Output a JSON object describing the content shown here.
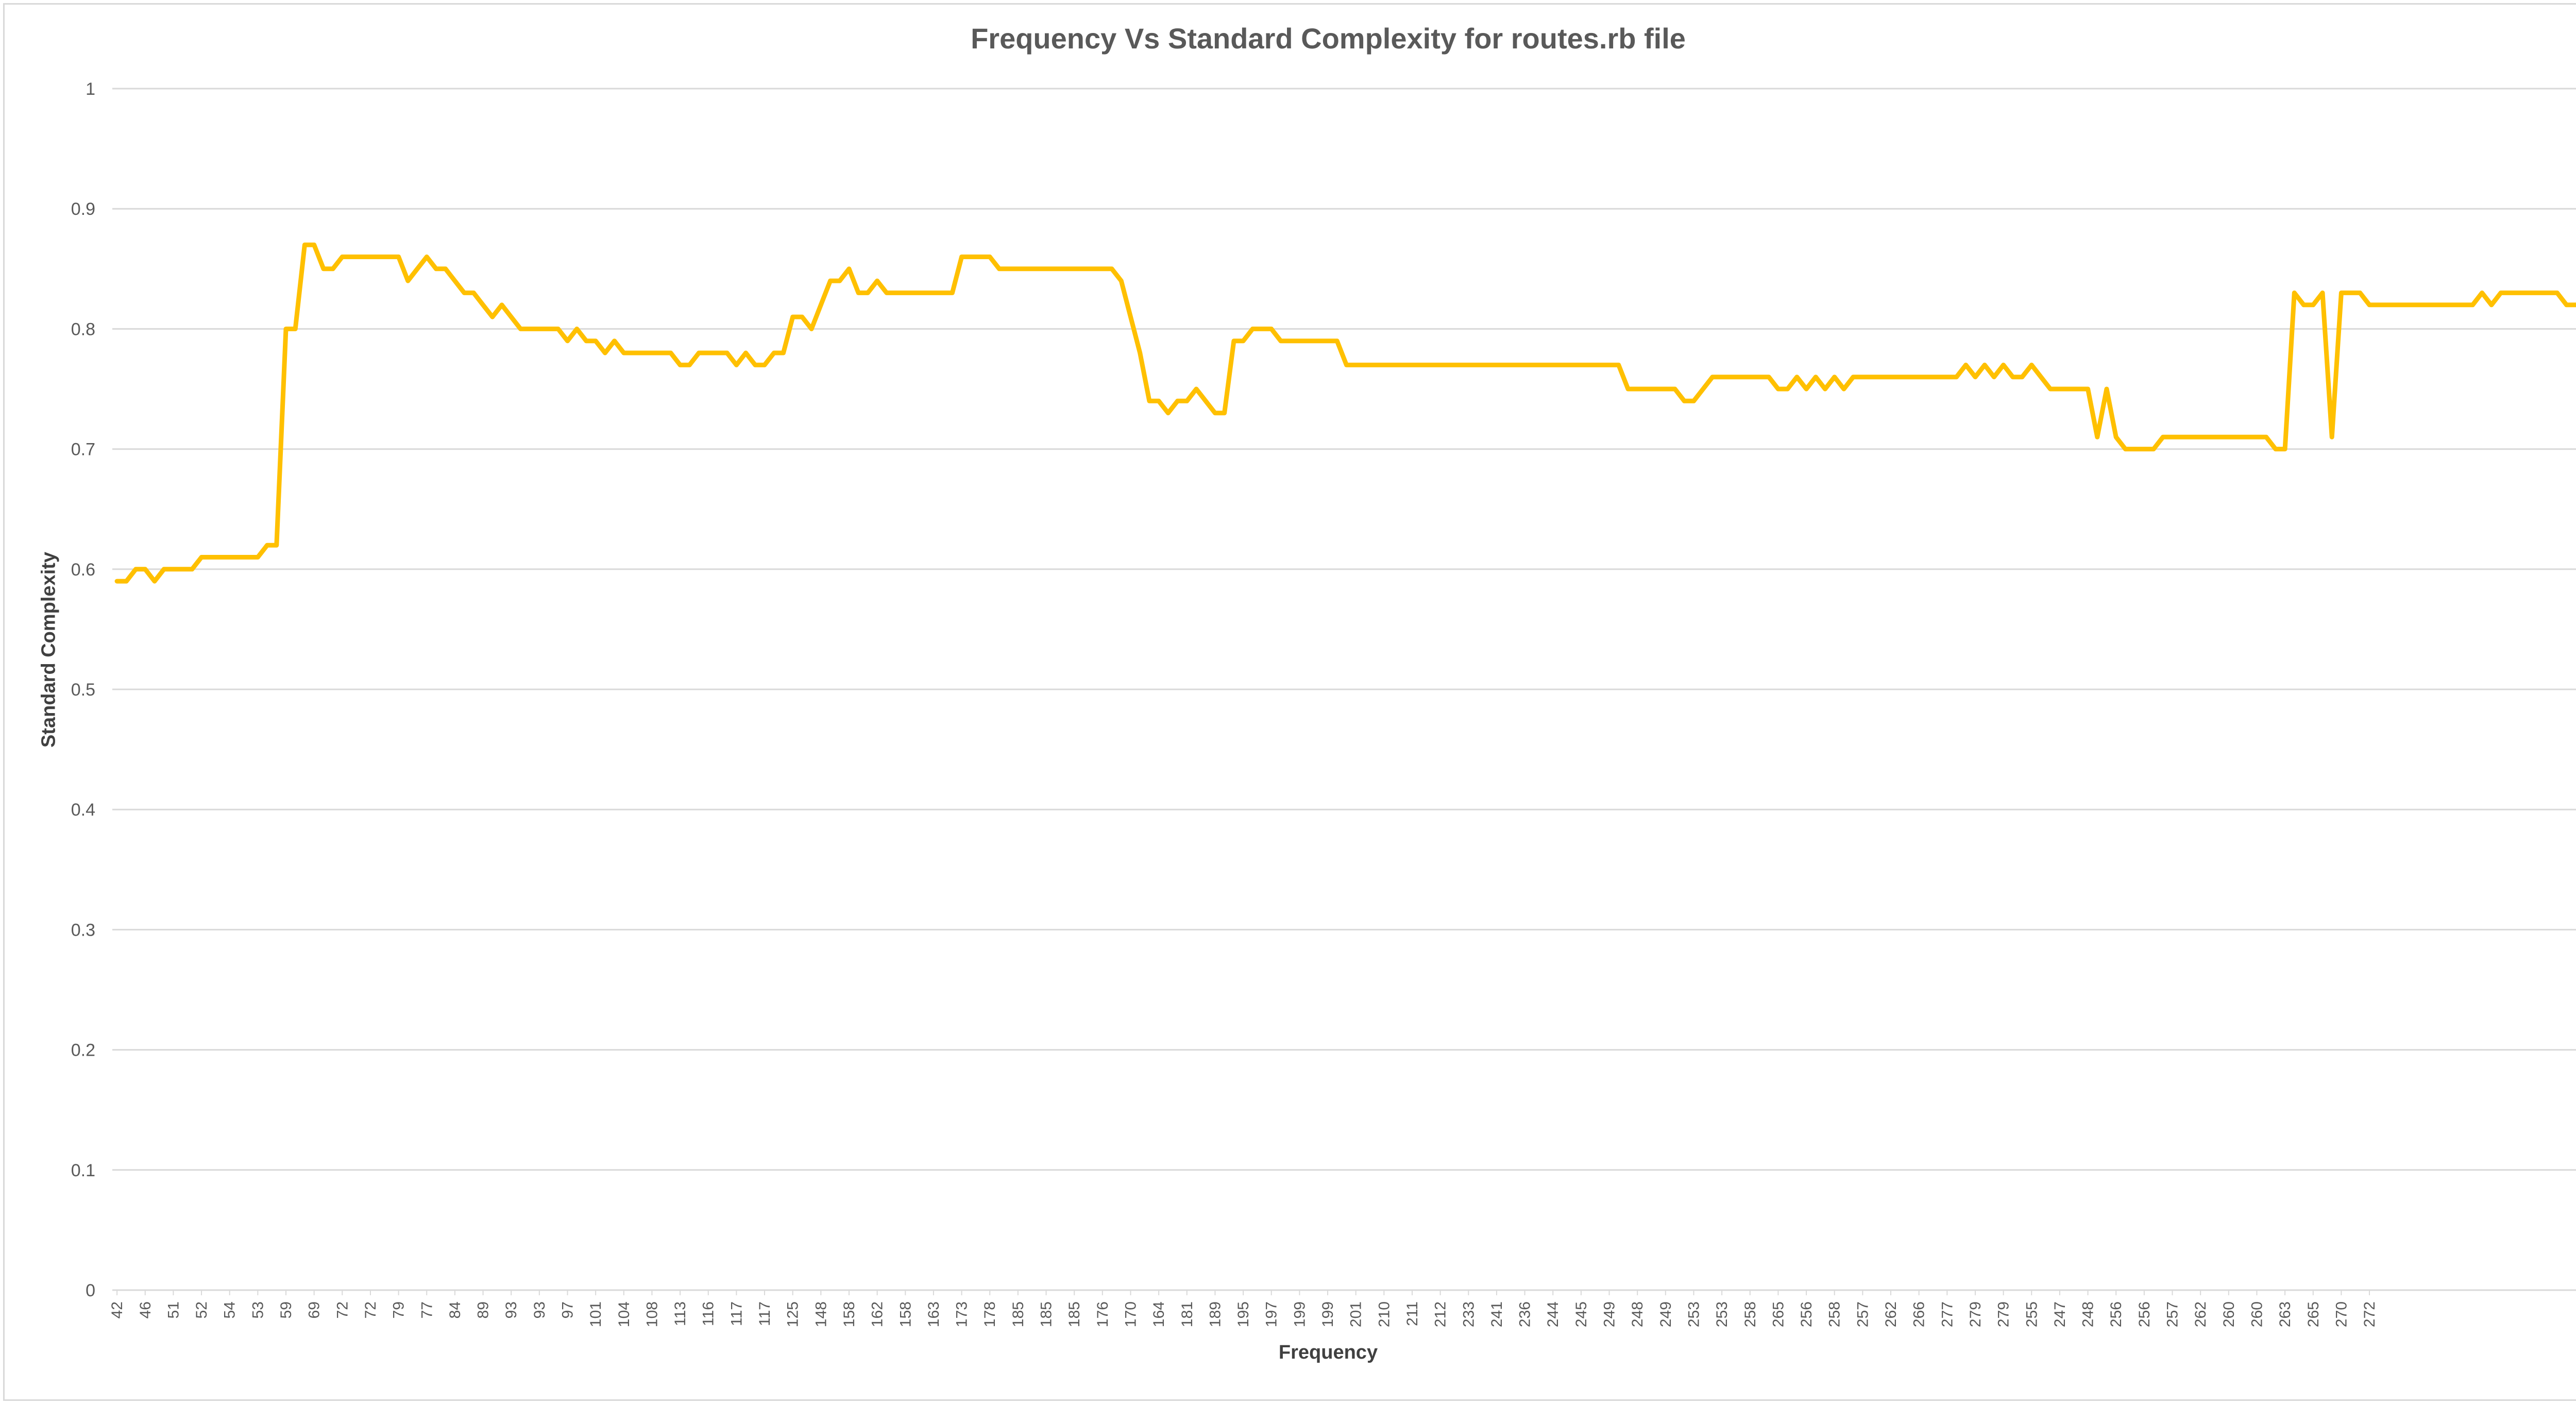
{
  "chart_data": {
    "type": "line",
    "title": "Frequency Vs Standard Complexity for routes.rb file",
    "xlabel": "Frequency",
    "ylabel": "Standard Complexity",
    "ylim": [
      0,
      1
    ],
    "yticks": [
      "0",
      "0.1",
      "0.2",
      "0.3",
      "0.4",
      "0.5",
      "0.6",
      "0.7",
      "0.8",
      "0.9",
      "1"
    ],
    "grid": "horizontal",
    "line_color": "#FFC000",
    "tick_labels": [
      "42",
      "46",
      "51",
      "52",
      "54",
      "53",
      "59",
      "69",
      "72",
      "72",
      "79",
      "77",
      "84",
      "89",
      "93",
      "93",
      "97",
      "101",
      "104",
      "108",
      "113",
      "116",
      "117",
      "117",
      "125",
      "148",
      "158",
      "162",
      "158",
      "163",
      "173",
      "178",
      "185",
      "185",
      "185",
      "176",
      "170",
      "164",
      "181",
      "189",
      "195",
      "197",
      "199",
      "199",
      "201",
      "210",
      "211",
      "212",
      "233",
      "241",
      "236",
      "244",
      "245",
      "249",
      "248",
      "249",
      "253",
      "253",
      "258",
      "265",
      "256",
      "258",
      "257",
      "262",
      "266",
      "277",
      "279",
      "279",
      "255",
      "247",
      "248",
      "256",
      "256",
      "257",
      "262",
      "260",
      "260",
      "263",
      "265",
      "270",
      "272"
    ],
    "series": [
      {
        "values": [
          0.59,
          0.59,
          0.6,
          0.6,
          0.59,
          0.6,
          0.6,
          0.6,
          0.6,
          0.61,
          0.61,
          0.61,
          0.61,
          0.61,
          0.61,
          0.61,
          0.62,
          0.62,
          0.8,
          0.8,
          0.87,
          0.87,
          0.85,
          0.85,
          0.86,
          0.86,
          0.86,
          0.86,
          0.86,
          0.86,
          0.86,
          0.84,
          0.85,
          0.86,
          0.85,
          0.85,
          0.84,
          0.83,
          0.83,
          0.82,
          0.81,
          0.82,
          0.81,
          0.8,
          0.8,
          0.8,
          0.8,
          0.8,
          0.79,
          0.8,
          0.79,
          0.79,
          0.78,
          0.79,
          0.78,
          0.78,
          0.78,
          0.78,
          0.78,
          0.78,
          0.77,
          0.77,
          0.78,
          0.78,
          0.78,
          0.78,
          0.77,
          0.78,
          0.77,
          0.77,
          0.78,
          0.78,
          0.81,
          0.81,
          0.8,
          0.82,
          0.84,
          0.84,
          0.85,
          0.83,
          0.83,
          0.84,
          0.83,
          0.83,
          0.83,
          0.83,
          0.83,
          0.83,
          0.83,
          0.83,
          0.86,
          0.86,
          0.86,
          0.86,
          0.85,
          0.85,
          0.85,
          0.85,
          0.85,
          0.85,
          0.85,
          0.85,
          0.85,
          0.85,
          0.85,
          0.85,
          0.85,
          0.84,
          0.81,
          0.78,
          0.74,
          0.74,
          0.73,
          0.74,
          0.74,
          0.75,
          0.74,
          0.73,
          0.73,
          0.79,
          0.79,
          0.8,
          0.8,
          0.8,
          0.79,
          0.79,
          0.79,
          0.79,
          0.79,
          0.79,
          0.79,
          0.77,
          0.77,
          0.77,
          0.77,
          0.77,
          0.77,
          0.77,
          0.77,
          0.77,
          0.77,
          0.77,
          0.77,
          0.77,
          0.77,
          0.77,
          0.77,
          0.77,
          0.77,
          0.77,
          0.77,
          0.77,
          0.77,
          0.77,
          0.77,
          0.77,
          0.77,
          0.77,
          0.77,
          0.77,
          0.77,
          0.75,
          0.75,
          0.75,
          0.75,
          0.75,
          0.75,
          0.74,
          0.74,
          0.75,
          0.76,
          0.76,
          0.76,
          0.76,
          0.76,
          0.76,
          0.76,
          0.75,
          0.75,
          0.76,
          0.75,
          0.76,
          0.75,
          0.76,
          0.75,
          0.76,
          0.76,
          0.76,
          0.76,
          0.76,
          0.76,
          0.76,
          0.76,
          0.76,
          0.76,
          0.76,
          0.76,
          0.77,
          0.76,
          0.77,
          0.76,
          0.77,
          0.76,
          0.76,
          0.77,
          0.76,
          0.75,
          0.75,
          0.75,
          0.75,
          0.75,
          0.71,
          0.75,
          0.71,
          0.7,
          0.7,
          0.7,
          0.7,
          0.71,
          0.71,
          0.71,
          0.71,
          0.71,
          0.71,
          0.71,
          0.71,
          0.71,
          0.71,
          0.71,
          0.71,
          0.7,
          0.7,
          0.83,
          0.82,
          0.82,
          0.83,
          0.71,
          0.83,
          0.83,
          0.83,
          0.82,
          0.82,
          0.82,
          0.82,
          0.82,
          0.82,
          0.82,
          0.82,
          0.82,
          0.82,
          0.82,
          0.82,
          0.83,
          0.82,
          0.83,
          0.83,
          0.83,
          0.83,
          0.83,
          0.83,
          0.83,
          0.82,
          0.82,
          0.82,
          0.82,
          0.82,
          0.82,
          0.82
        ]
      }
    ]
  }
}
